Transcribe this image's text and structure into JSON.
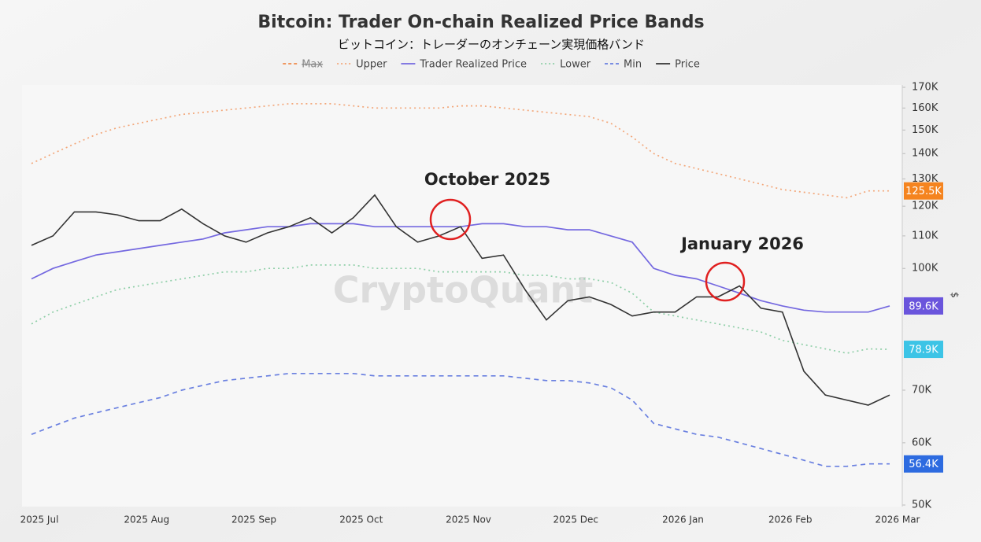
{
  "chart_data": {
    "type": "line",
    "title": "Bitcoin: Trader On-chain Realized Price Bands",
    "subtitle": "ビットコイン：トレーダーのオンチェーン実現価格バンド",
    "watermark": "CryptoQuant",
    "y_axis_label": "$",
    "log_scale": true,
    "legend_position": "top",
    "categories": [
      "2025 Jul",
      null,
      null,
      null,
      null,
      "2025 Aug",
      null,
      null,
      null,
      null,
      "2025 Sep",
      null,
      null,
      null,
      null,
      "2025 Oct",
      null,
      null,
      null,
      null,
      "2025 Nov",
      null,
      null,
      null,
      null,
      "2025 Dec",
      null,
      null,
      null,
      null,
      "2026 Jan",
      null,
      null,
      null,
      null,
      "2026 Feb",
      null,
      null,
      null,
      null,
      "2026 Mar"
    ],
    "ylim": [
      50000,
      170000
    ],
    "yticks": [
      {
        "value": 50000,
        "label": "50K"
      },
      {
        "value": 60000,
        "label": "60K"
      },
      {
        "value": 70000,
        "label": "70K"
      },
      {
        "value": 100000,
        "label": "100K"
      },
      {
        "value": 110000,
        "label": "110K"
      },
      {
        "value": 120000,
        "label": "120K"
      },
      {
        "value": 130000,
        "label": "130K"
      },
      {
        "value": 140000,
        "label": "140K"
      },
      {
        "value": 150000,
        "label": "150K"
      },
      {
        "value": 160000,
        "label": "160K"
      },
      {
        "value": 170000,
        "label": "170K"
      }
    ],
    "series": [
      {
        "name": "Max",
        "color": "#f08a4b",
        "style": "dashed",
        "hidden": true
      },
      {
        "name": "Upper",
        "color": "#f3a77a",
        "style": "dotted",
        "last_label": "125.5K",
        "label_color": "#f5841f",
        "values": [
          136000,
          140000,
          144000,
          148000,
          151000,
          153000,
          155000,
          157000,
          158000,
          159000,
          160000,
          161000,
          162000,
          162000,
          162000,
          161000,
          160000,
          160000,
          160000,
          160000,
          161000,
          161000,
          160000,
          159000,
          158000,
          157000,
          156000,
          153000,
          147000,
          140000,
          136000,
          134000,
          132000,
          130000,
          128000,
          126000,
          125000,
          124000,
          123000,
          125500,
          125500
        ]
      },
      {
        "name": "Trader Realized Price",
        "color": "#7468e0",
        "style": "solid",
        "last_label": "89.6K",
        "label_color": "#6a55dc",
        "values": [
          97000,
          100000,
          102000,
          104000,
          105000,
          106000,
          107000,
          108000,
          109000,
          111000,
          112000,
          113000,
          113000,
          114000,
          114000,
          114000,
          113000,
          113000,
          113000,
          113000,
          113000,
          114000,
          114000,
          113000,
          113000,
          112000,
          112000,
          110000,
          108000,
          100000,
          98000,
          97000,
          95000,
          93000,
          91000,
          89600,
          88500,
          88000,
          88000,
          88000,
          89600
        ]
      },
      {
        "name": "Lower",
        "color": "#8fcfa8",
        "style": "dotted",
        "last_label": "78.9K",
        "label_color": "#3cc4e6",
        "values": [
          85000,
          88000,
          90000,
          92000,
          94000,
          95000,
          96000,
          97000,
          98000,
          99000,
          99000,
          100000,
          100000,
          101000,
          101000,
          101000,
          100000,
          100000,
          100000,
          99000,
          99000,
          99000,
          99000,
          98000,
          98000,
          97000,
          97000,
          96000,
          93000,
          88000,
          87000,
          86000,
          85000,
          84000,
          83000,
          81000,
          80000,
          79000,
          78000,
          79000,
          78900
        ]
      },
      {
        "name": "Min",
        "color": "#6a80e0",
        "style": "dashed",
        "last_label": "56.4K",
        "label_color": "#2d6be0",
        "values": [
          61500,
          63000,
          64500,
          65500,
          66500,
          67500,
          68500,
          70000,
          71000,
          72000,
          72500,
          73000,
          73500,
          73500,
          73500,
          73500,
          73000,
          73000,
          73000,
          73000,
          73000,
          73000,
          73000,
          72500,
          72000,
          72000,
          71500,
          70500,
          68000,
          63500,
          62500,
          61500,
          61000,
          60000,
          59000,
          58000,
          57000,
          56000,
          56000,
          56400,
          56400
        ]
      },
      {
        "name": "Price",
        "color": "#333333",
        "style": "solid",
        "values": [
          107000,
          110000,
          118000,
          118000,
          117000,
          115000,
          115000,
          119000,
          114000,
          110000,
          108000,
          111000,
          113000,
          116000,
          111000,
          116000,
          124000,
          113000,
          108000,
          110000,
          113000,
          103000,
          104000,
          94000,
          86000,
          91000,
          92000,
          90000,
          87000,
          88000,
          88000,
          92000,
          92000,
          95000,
          89000,
          88000,
          74000,
          69000,
          68000,
          67000,
          69000
        ]
      }
    ],
    "annotations": [
      "October 2025",
      "January 2026"
    ]
  }
}
